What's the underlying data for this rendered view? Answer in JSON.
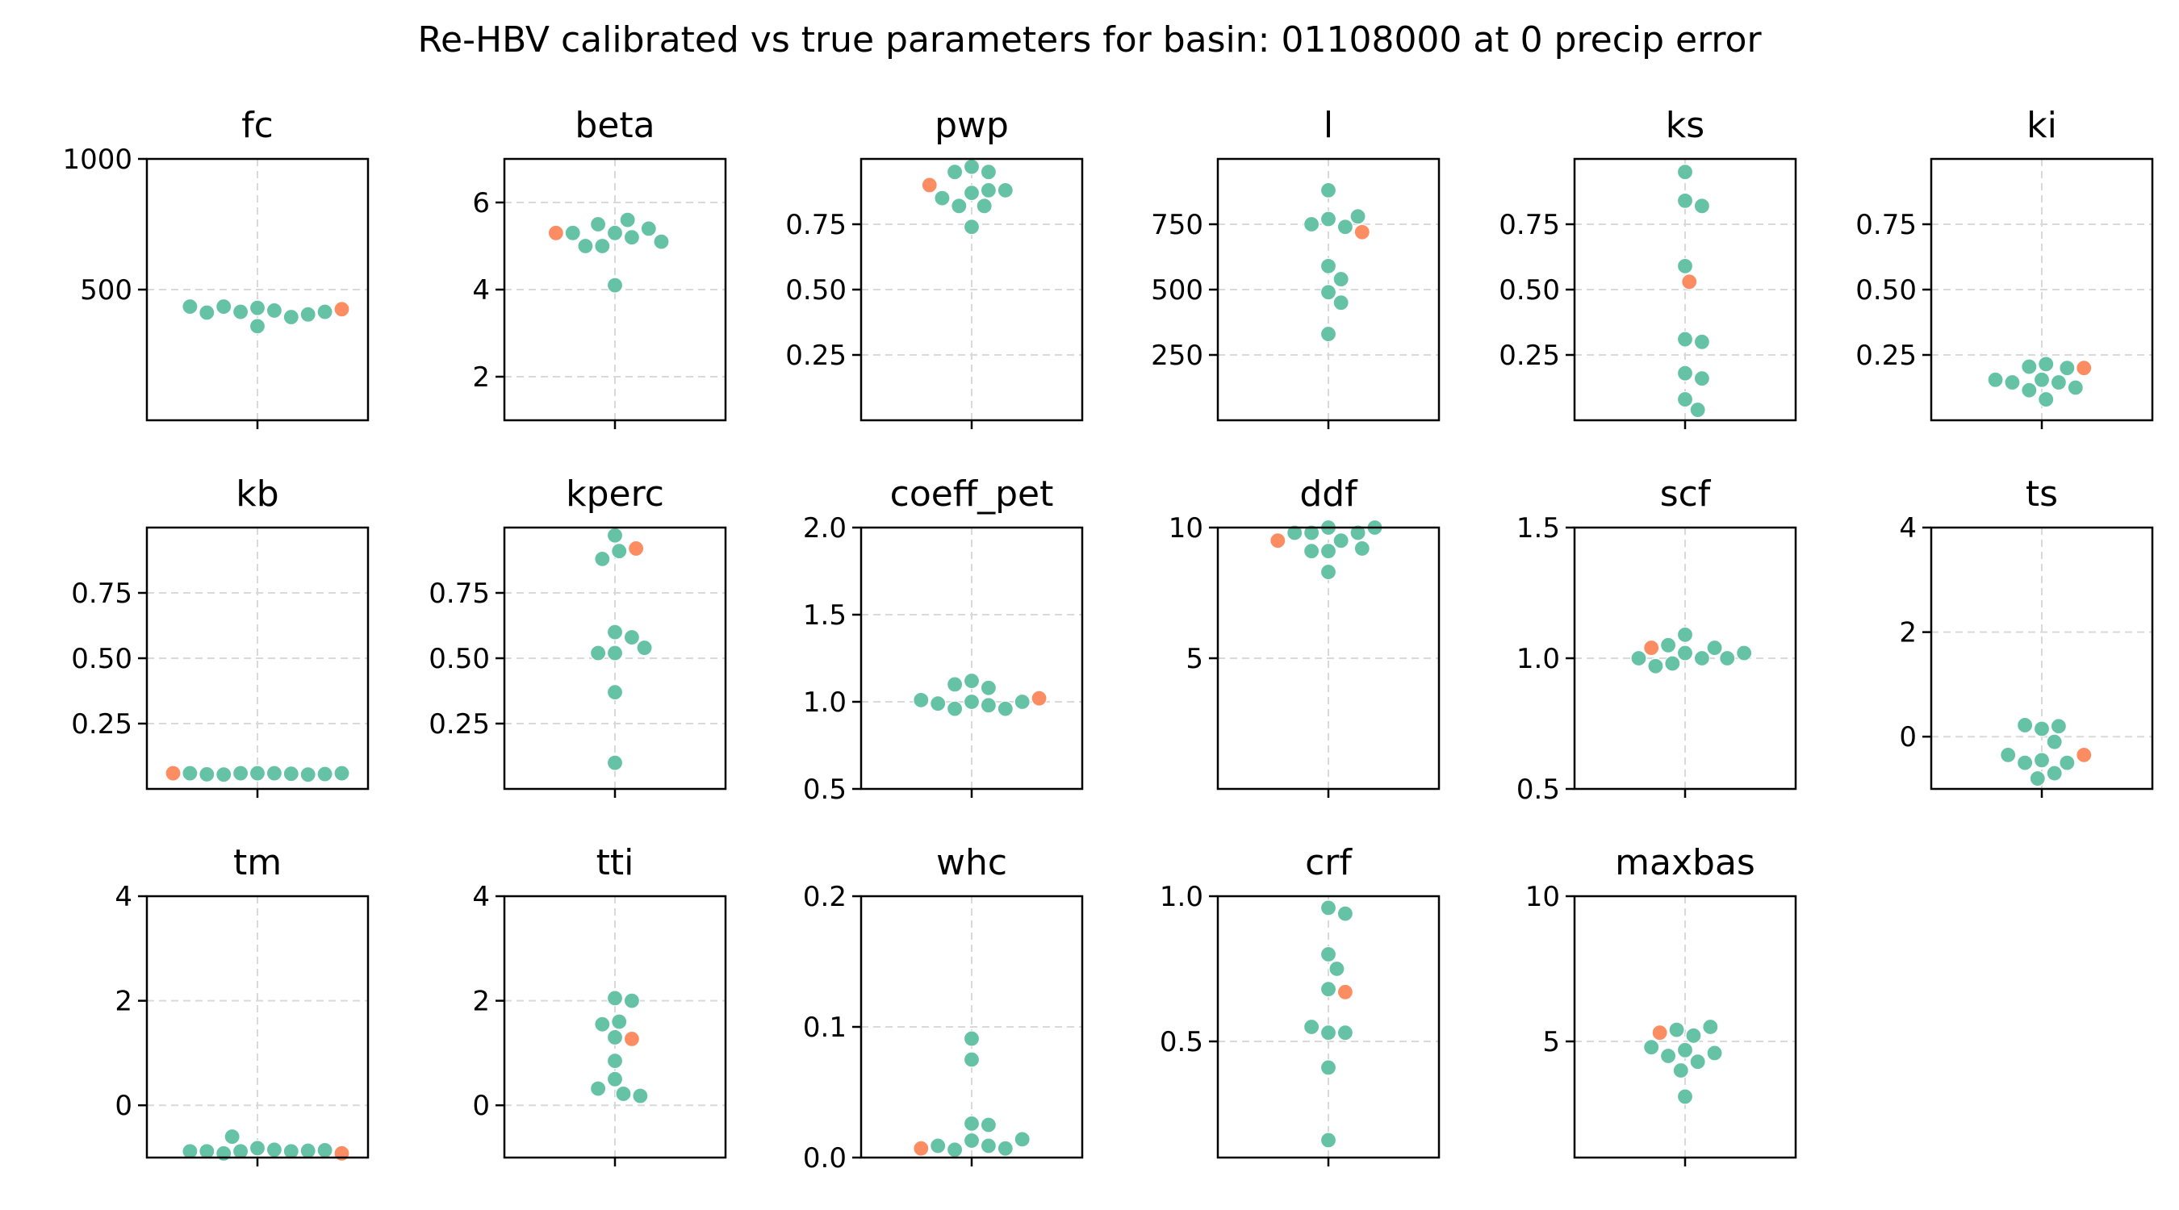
{
  "colors": {
    "calibrated": "#66c2a5",
    "true": "#fc8d62"
  },
  "chart_data": {
    "type": "scatter",
    "title": "Re-HBV calibrated vs true parameters for basin: 01108000 at 0 precip error",
    "grid": true,
    "panels": [
      {
        "name": "fc",
        "ylim": [
          0,
          1000
        ],
        "yticks": [
          500,
          1000
        ],
        "yticklabels": [
          "500",
          "1000"
        ],
        "calibrated": [
          430,
          420,
          415,
          395,
          435,
          360,
          405,
          412,
          415,
          435
        ],
        "true": 425
      },
      {
        "name": "beta",
        "ylim": [
          1,
          7
        ],
        "yticks": [
          2,
          4,
          6
        ],
        "yticklabels": [
          "2",
          "4",
          "6"
        ],
        "calibrated": [
          5.3,
          5.2,
          5.5,
          5.0,
          5.4,
          5.0,
          5.6,
          5.1,
          5.3,
          4.1
        ],
        "true": 5.3
      },
      {
        "name": "pwp",
        "ylim": [
          0,
          1
        ],
        "yticks": [
          0.25,
          0.5,
          0.75
        ],
        "yticklabels": [
          "0.25",
          "0.50",
          "0.75"
        ],
        "calibrated": [
          0.87,
          0.82,
          0.88,
          0.97,
          0.95,
          0.82,
          0.95,
          0.85,
          0.88,
          0.74
        ],
        "true": 0.9
      },
      {
        "name": "l",
        "ylim": [
          0,
          1000
        ],
        "yticks": [
          250,
          500,
          750
        ],
        "yticklabels": [
          "250",
          "500",
          "750"
        ],
        "calibrated": [
          770,
          740,
          880,
          750,
          780,
          590,
          540,
          490,
          450,
          330
        ],
        "true": 720
      },
      {
        "name": "ks",
        "ylim": [
          0,
          1
        ],
        "yticks": [
          0.25,
          0.5,
          0.75
        ],
        "yticklabels": [
          "0.25",
          "0.50",
          "0.75"
        ],
        "calibrated": [
          0.95,
          0.84,
          0.82,
          0.59,
          0.31,
          0.3,
          0.18,
          0.16,
          0.08,
          0.04
        ],
        "true": 0.53
      },
      {
        "name": "ki",
        "ylim": [
          0,
          1
        ],
        "yticks": [
          0.25,
          0.5,
          0.75
        ],
        "yticklabels": [
          "0.25",
          "0.50",
          "0.75"
        ],
        "calibrated": [
          0.155,
          0.215,
          0.145,
          0.205,
          0.115,
          0.2,
          0.08,
          0.145,
          0.125,
          0.155
        ],
        "true": 0.2
      },
      {
        "name": "kb",
        "ylim": [
          0,
          1
        ],
        "yticks": [
          0.25,
          0.5,
          0.75
        ],
        "yticklabels": [
          "0.25",
          "0.50",
          "0.75"
        ],
        "calibrated": [
          0.06,
          0.06,
          0.06,
          0.058,
          0.055,
          0.055,
          0.056,
          0.057,
          0.06,
          0.06
        ],
        "true": 0.06
      },
      {
        "name": "kperc",
        "ylim": [
          0,
          1
        ],
        "yticks": [
          0.25,
          0.5,
          0.75
        ],
        "yticklabels": [
          "0.25",
          "0.50",
          "0.75"
        ],
        "calibrated": [
          0.97,
          0.91,
          0.88,
          0.6,
          0.58,
          0.52,
          0.52,
          0.54,
          0.37,
          0.1
        ],
        "true": 0.92
      },
      {
        "name": "coeff_pet",
        "ylim": [
          0.5,
          2.0
        ],
        "yticks": [
          0.5,
          1.0,
          1.5,
          2.0
        ],
        "yticklabels": [
          "0.5",
          "1.0",
          "1.5",
          "2.0"
        ],
        "calibrated": [
          1.0,
          0.98,
          1.12,
          0.96,
          1.08,
          0.96,
          1.1,
          0.99,
          1.0,
          1.01
        ],
        "true": 1.02
      },
      {
        "name": "ddf",
        "ylim": [
          0,
          10
        ],
        "yticks": [
          5,
          10
        ],
        "yticklabels": [
          "5",
          "10"
        ],
        "calibrated": [
          10.0,
          9.5,
          9.8,
          9.1,
          9.8,
          9.1,
          9.8,
          9.2,
          10.0,
          8.3
        ],
        "true": 9.5
      },
      {
        "name": "scf",
        "ylim": [
          0.5,
          1.5
        ],
        "yticks": [
          0.5,
          1.0,
          1.5
        ],
        "yticklabels": [
          "0.5",
          "1.0",
          "1.5"
        ],
        "calibrated": [
          1.02,
          1.0,
          1.05,
          0.98,
          1.04,
          0.97,
          1.09,
          1.0,
          1.0,
          1.02
        ],
        "true": 1.04
      },
      {
        "name": "ts",
        "ylim": [
          -1,
          4
        ],
        "yticks": [
          0,
          2,
          4
        ],
        "yticklabels": [
          "0",
          "2",
          "4"
        ],
        "calibrated": [
          -0.45,
          -0.7,
          0.15,
          -0.5,
          -0.1,
          -0.8,
          0.2,
          -0.5,
          0.22,
          -0.35
        ],
        "true": -0.35
      },
      {
        "name": "tm",
        "ylim": [
          -1,
          4
        ],
        "yticks": [
          0,
          2,
          4
        ],
        "yticklabels": [
          "0",
          "2",
          "4"
        ],
        "calibrated": [
          -0.82,
          -0.85,
          -0.88,
          -0.88,
          -0.6,
          -0.92,
          -0.87,
          -0.88,
          -0.86,
          -0.88
        ],
        "true": -0.92
      },
      {
        "name": "tti",
        "ylim": [
          -1,
          4
        ],
        "yticks": [
          0,
          2,
          4
        ],
        "yticklabels": [
          "0",
          "2",
          "4"
        ],
        "calibrated": [
          2.05,
          2.0,
          1.3,
          1.6,
          1.55,
          0.85,
          0.5,
          0.22,
          0.32,
          0.18
        ],
        "true": 1.27
      },
      {
        "name": "whc",
        "ylim": [
          0,
          0.2
        ],
        "yticks": [
          0.0,
          0.1,
          0.2
        ],
        "yticklabels": [
          "0.0",
          "0.1",
          "0.2"
        ],
        "calibrated": [
          0.013,
          0.009,
          0.026,
          0.091,
          0.075,
          0.025,
          0.006,
          0.007,
          0.009,
          0.014
        ],
        "true": 0.007
      },
      {
        "name": "crf",
        "ylim": [
          0.1,
          1.0
        ],
        "yticks": [
          0.5,
          1.0
        ],
        "yticklabels": [
          "0.5",
          "1.0"
        ],
        "calibrated": [
          0.96,
          0.94,
          0.8,
          0.75,
          0.68,
          0.53,
          0.53,
          0.55,
          0.41,
          0.16
        ],
        "true": 0.67
      },
      {
        "name": "maxbas",
        "ylim": [
          1,
          10
        ],
        "yticks": [
          5,
          10
        ],
        "yticklabels": [
          "5",
          "10"
        ],
        "calibrated": [
          4.7,
          4.3,
          5.2,
          4.0,
          4.5,
          5.4,
          4.6,
          5.5,
          4.8,
          3.1
        ],
        "true": 5.3
      }
    ]
  }
}
